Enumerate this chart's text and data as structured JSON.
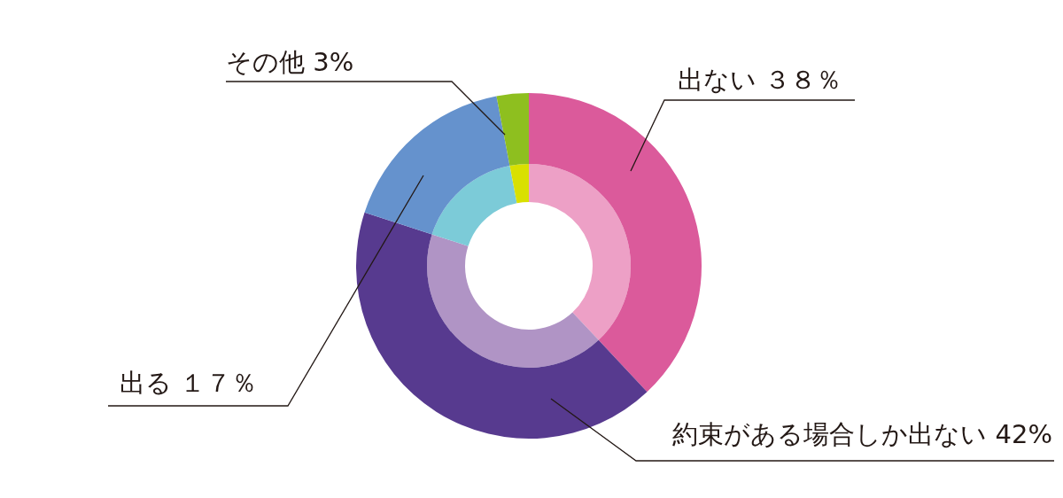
{
  "chart_data": {
    "type": "donut",
    "categories": [
      "出ない",
      "約束がある場合しか出ない",
      "出る",
      "その他"
    ],
    "value_labels": [
      "３８％",
      "42%",
      "１７％",
      "3%"
    ],
    "series": [
      {
        "colors": [
          "#db5a9b",
          "#573a8f",
          "#6592cd",
          "#8ebf1f"
        ],
        "values": [
          38,
          42,
          17,
          3
        ]
      },
      {
        "colors": [
          "#eda0c6",
          "#b094c5",
          "#7ccbd8",
          "#d9e000"
        ],
        "values": [
          38,
          42,
          17,
          3
        ]
      }
    ],
    "legend": false
  }
}
